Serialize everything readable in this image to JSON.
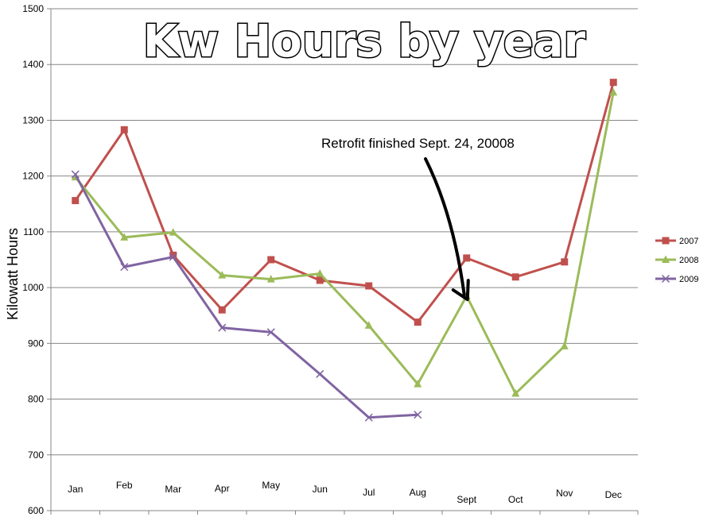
{
  "chart_data": {
    "type": "line",
    "title": "Kw Hours by year",
    "xlabel": "",
    "ylabel": "Kilowatt Hours",
    "ylim": [
      600,
      1500
    ],
    "yticks": [
      600,
      700,
      800,
      900,
      1000,
      1100,
      1200,
      1300,
      1400,
      1500
    ],
    "grid": true,
    "legend_position": "right",
    "categories": [
      "Jan",
      "Feb",
      "Mar",
      "Apr",
      "May",
      "Jun",
      "Jul",
      "Aug",
      "Sept",
      "Oct",
      "Nov",
      "Dec"
    ],
    "series": [
      {
        "name": "2007",
        "color": "#C0504D",
        "marker": "square",
        "values": [
          1156,
          1283,
          1058,
          960,
          1050,
          1013,
          1003,
          938,
          1053,
          1019,
          1046,
          1368
        ]
      },
      {
        "name": "2008",
        "color": "#9BBB59",
        "marker": "triangle",
        "values": [
          1198,
          1090,
          1099,
          1022,
          1015,
          1025,
          932,
          827,
          985,
          810,
          895,
          1350
        ]
      },
      {
        "name": "2009",
        "color": "#8064A2",
        "marker": "x",
        "values": [
          1203,
          1037,
          1055,
          928,
          920,
          845,
          767,
          772,
          null,
          null,
          null,
          null
        ]
      }
    ],
    "annotation": {
      "text": "Retrofit finished Sept. 24, 20008",
      "points_to_category": "Sept",
      "points_to_value": 990,
      "arrow_color": "#000000"
    },
    "colors": {
      "grid": "#868686",
      "axis": "#868686"
    }
  }
}
